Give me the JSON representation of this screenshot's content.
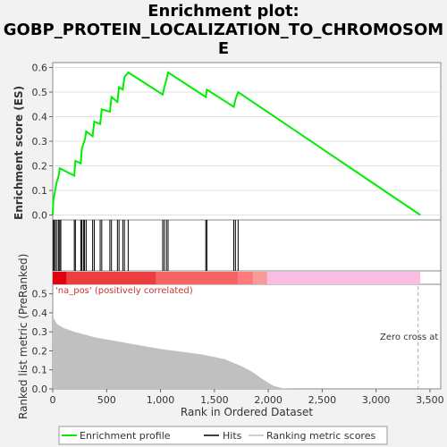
{
  "title_lines": [
    "Enrichment plot:",
    "GOBP_PROTEIN_LOCALIZATION_TO_CHROMOSOM",
    "E"
  ],
  "chart_data": {
    "type": "line",
    "es_ylabel": "Enrichment score (ES)",
    "metric_ylabel": "Ranked list metric (PreRanked)",
    "xlabel": "Rank in Ordered Dataset",
    "xlim": [
      0,
      3600
    ],
    "es_ylim": [
      -0.02,
      0.62
    ],
    "metric_ylim": [
      0,
      0.55
    ],
    "x_ticks": [
      0,
      500,
      1000,
      1500,
      2000,
      2500,
      3000,
      3500
    ],
    "x_tick_labels": [
      "0",
      "500",
      "1,000",
      "1,500",
      "2,000",
      "2,500",
      "3,000",
      "3,500"
    ],
    "es_ticks": [
      0.0,
      0.1,
      0.2,
      0.3,
      0.4,
      0.5,
      0.6
    ],
    "es_tick_labels": [
      "0.0",
      "0.1",
      "0.2",
      "0.3",
      "0.4",
      "0.5",
      "0.6"
    ],
    "metric_ticks": [
      0.0,
      0.1,
      0.2,
      0.3,
      0.4,
      0.5
    ],
    "metric_tick_labels": [
      "0.0",
      "0.1",
      "0.2",
      "0.3",
      "0.4",
      "0.5"
    ],
    "enrichment_profile": [
      [
        0,
        0.0
      ],
      [
        6,
        0.06
      ],
      [
        18,
        0.09
      ],
      [
        35,
        0.13
      ],
      [
        55,
        0.16
      ],
      [
        65,
        0.19
      ],
      [
        200,
        0.16
      ],
      [
        210,
        0.22
      ],
      [
        260,
        0.21
      ],
      [
        270,
        0.27
      ],
      [
        285,
        0.29
      ],
      [
        300,
        0.31
      ],
      [
        310,
        0.34
      ],
      [
        370,
        0.32
      ],
      [
        385,
        0.38
      ],
      [
        440,
        0.37
      ],
      [
        455,
        0.43
      ],
      [
        530,
        0.42
      ],
      [
        545,
        0.48
      ],
      [
        600,
        0.46
      ],
      [
        615,
        0.52
      ],
      [
        650,
        0.51
      ],
      [
        665,
        0.56
      ],
      [
        700,
        0.58
      ],
      [
        1020,
        0.49
      ],
      [
        1035,
        0.52
      ],
      [
        1055,
        0.55
      ],
      [
        1070,
        0.58
      ],
      [
        1420,
        0.48
      ],
      [
        1430,
        0.51
      ],
      [
        1680,
        0.44
      ],
      [
        1695,
        0.47
      ],
      [
        1720,
        0.5
      ],
      [
        3410,
        0.0
      ]
    ],
    "hits": [
      5,
      15,
      25,
      40,
      55,
      65,
      75,
      200,
      210,
      260,
      270,
      285,
      295,
      310,
      370,
      385,
      440,
      455,
      530,
      545,
      600,
      615,
      650,
      665,
      700,
      1020,
      1035,
      1055,
      1070,
      1420,
      1430,
      1680,
      1695,
      1720
    ],
    "metric_curve": [
      [
        0,
        0.41
      ],
      [
        10,
        0.37
      ],
      [
        40,
        0.34
      ],
      [
        100,
        0.32
      ],
      [
        200,
        0.3
      ],
      [
        400,
        0.27
      ],
      [
        700,
        0.24
      ],
      [
        1000,
        0.21
      ],
      [
        1200,
        0.195
      ],
      [
        1400,
        0.18
      ],
      [
        1600,
        0.155
      ],
      [
        1750,
        0.12
      ],
      [
        1850,
        0.09
      ],
      [
        1950,
        0.05
      ],
      [
        2050,
        0.015
      ],
      [
        2150,
        0.002
      ],
      [
        2300,
        0.0
      ],
      [
        3410,
        0.0
      ]
    ],
    "bar_segments": [
      {
        "start": 0,
        "end": 130,
        "color": "#e2000f"
      },
      {
        "start": 130,
        "end": 960,
        "color": "#ec3e3e"
      },
      {
        "start": 960,
        "end": 1720,
        "color": "#f76262"
      },
      {
        "start": 1720,
        "end": 1860,
        "color": "#ff7a7a"
      },
      {
        "start": 1860,
        "end": 1990,
        "color": "#f79a9a"
      },
      {
        "start": 1990,
        "end": 3410,
        "color": "#fbbde2"
      }
    ],
    "positive_label": "'na_pos' (positively correlated)",
    "zero_cross_label": "Zero cross at",
    "zero_cross_x": 3390,
    "legend": {
      "items": [
        "Enrichment profile",
        "Hits",
        "Ranking metric scores"
      ],
      "placement": "bottom"
    },
    "colors": {
      "profile": "#00ee00",
      "hits": "#000000",
      "metric_fill": "#c0c0c0",
      "metric_line": "#909090",
      "positive_label": "#cc3333"
    }
  }
}
